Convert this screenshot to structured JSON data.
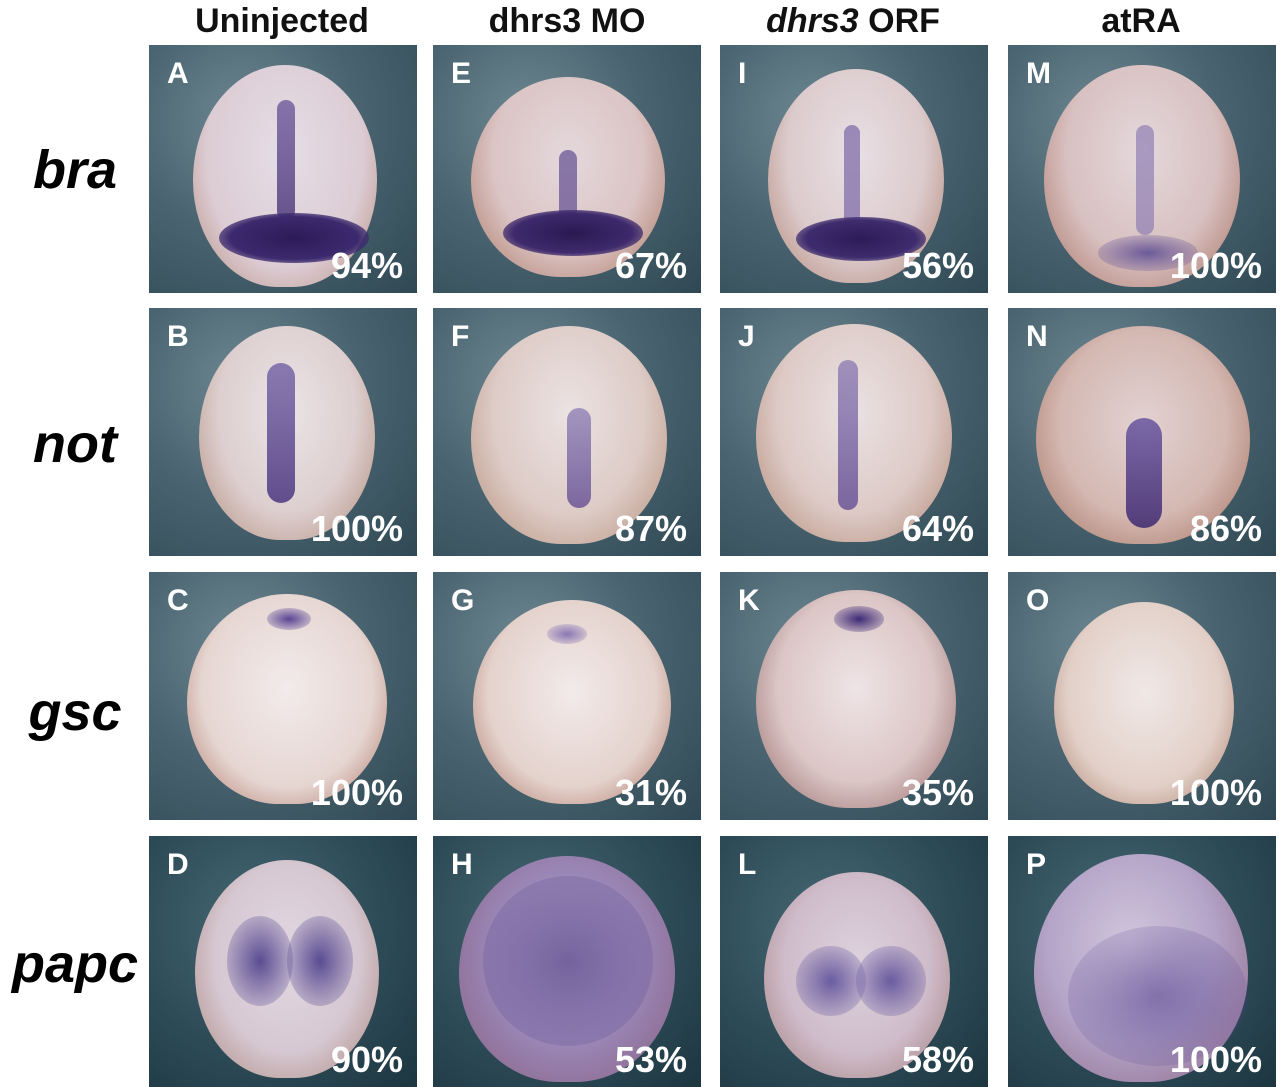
{
  "columns": [
    {
      "label": "Uninjected"
    },
    {
      "label": "dhrs3 MO"
    },
    {
      "gene": "dhrs3",
      "suffix": " ORF"
    },
    {
      "label": "atRA"
    }
  ],
  "rows": [
    {
      "gene": "bra"
    },
    {
      "gene": "not"
    },
    {
      "gene": "gsc"
    },
    {
      "gene": "papc"
    }
  ],
  "panels": [
    {
      "letter": "A",
      "percent": "94%"
    },
    {
      "letter": "E",
      "percent": "67%"
    },
    {
      "letter": "I",
      "percent": "56%"
    },
    {
      "letter": "M",
      "percent": "100%"
    },
    {
      "letter": "B",
      "percent": "100%"
    },
    {
      "letter": "F",
      "percent": "87%"
    },
    {
      "letter": "J",
      "percent": "64%"
    },
    {
      "letter": "N",
      "percent": "86%"
    },
    {
      "letter": "C",
      "percent": "100%"
    },
    {
      "letter": "G",
      "percent": "31%"
    },
    {
      "letter": "K",
      "percent": "35%"
    },
    {
      "letter": "O",
      "percent": "100%"
    },
    {
      "letter": "D",
      "percent": "90%"
    },
    {
      "letter": "H",
      "percent": "53%"
    },
    {
      "letter": "L",
      "percent": "58%"
    },
    {
      "letter": "P",
      "percent": "100%"
    }
  ],
  "colors": {
    "background": "#ffffff",
    "label_text": "#ffffff",
    "stain": "#3a2470"
  }
}
